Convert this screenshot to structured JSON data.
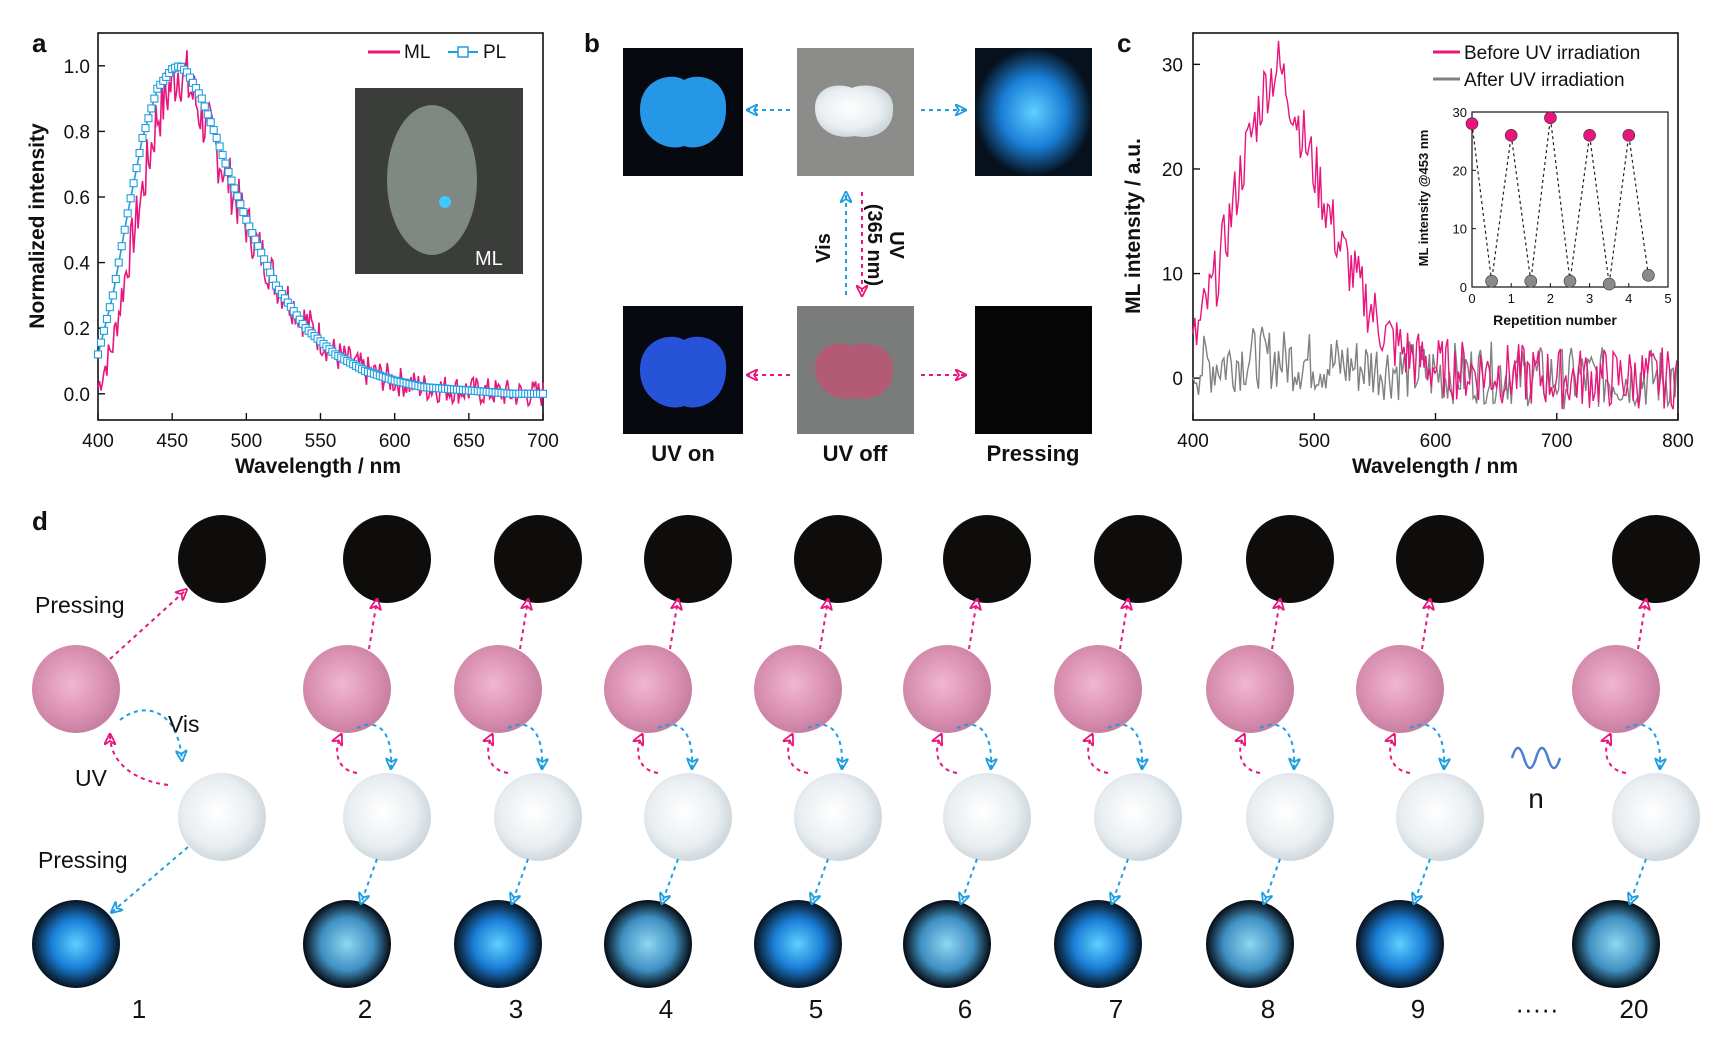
{
  "panel_labels": {
    "a": "a",
    "b": "b",
    "c": "c",
    "d": "d"
  },
  "colors": {
    "ml": "#e8157d",
    "pl": "#1e9ee0",
    "after": "#808080",
    "uv_arrow": "#e8157d",
    "vis_arrow": "#1e9ee0"
  },
  "chart_data": [
    {
      "type": "line",
      "panel": "a",
      "xlabel": "Wavelength / nm",
      "ylabel": "Normalized intensity",
      "xlim": [
        400,
        700
      ],
      "ylim": [
        -0.08,
        1.1
      ],
      "xticks": [
        "400",
        "450",
        "500",
        "550",
        "600",
        "650",
        "700"
      ],
      "yticks": [
        "0.0",
        "0.2",
        "0.4",
        "0.6",
        "0.8",
        "1.0"
      ],
      "legend_position": "top-right",
      "series": [
        {
          "name": "ML",
          "x": [
            400,
            410,
            420,
            430,
            440,
            450,
            455,
            460,
            470,
            480,
            490,
            500,
            520,
            540,
            560,
            580,
            600,
            620,
            650,
            680,
            700
          ],
          "y": [
            0.02,
            0.15,
            0.4,
            0.62,
            0.85,
            0.95,
            1.0,
            0.95,
            0.85,
            0.74,
            0.63,
            0.52,
            0.34,
            0.22,
            0.12,
            0.07,
            0.04,
            0.02,
            0.01,
            0.0,
            0.0
          ]
        },
        {
          "name": "PL",
          "x": [
            400,
            410,
            420,
            430,
            440,
            450,
            455,
            460,
            470,
            480,
            490,
            500,
            520,
            540,
            560,
            580,
            600,
            620,
            650,
            680,
            700
          ],
          "y": [
            0.12,
            0.3,
            0.55,
            0.78,
            0.93,
            0.99,
            1.0,
            0.98,
            0.9,
            0.78,
            0.65,
            0.53,
            0.33,
            0.2,
            0.12,
            0.07,
            0.04,
            0.02,
            0.01,
            0.0,
            0.0
          ]
        }
      ],
      "inset_label": "ML"
    },
    {
      "type": "line",
      "panel": "c",
      "xlabel": "Wavelength / nm",
      "ylabel": "ML intensity / a.u.",
      "xlim": [
        400,
        800
      ],
      "ylim": [
        -4,
        33
      ],
      "xticks": [
        "400",
        "500",
        "600",
        "700",
        "800"
      ],
      "yticks": [
        "0",
        "10",
        "20",
        "30"
      ],
      "legend_position": "top-right",
      "series": [
        {
          "name": "Before UV irradiation",
          "x": [
            400,
            420,
            440,
            460,
            470,
            480,
            500,
            520,
            540,
            560,
            580,
            600,
            650,
            700,
            750,
            800
          ],
          "y": [
            3,
            10,
            20,
            28,
            30,
            27,
            20,
            13,
            8,
            4,
            2,
            1,
            0.5,
            0,
            0,
            0
          ]
        },
        {
          "name": "After UV irradiation",
          "x": [
            400,
            450,
            500,
            550,
            600,
            650,
            700,
            750,
            800
          ],
          "y": [
            1,
            2,
            1.5,
            1,
            0.5,
            0.5,
            0,
            0,
            0
          ]
        }
      ],
      "inset": {
        "type": "scatter",
        "xlabel": "Repetition number",
        "ylabel": "ML intensity @453 nm",
        "xlim": [
          0,
          5
        ],
        "ylim": [
          0,
          30
        ],
        "xticks": [
          "0",
          "1",
          "2",
          "3",
          "4",
          "5"
        ],
        "yticks": [
          "0",
          "10",
          "20",
          "30"
        ],
        "x": [
          0,
          0.5,
          1,
          1.5,
          2,
          2.5,
          3,
          3.5,
          4,
          4.5
        ],
        "y": [
          28,
          1,
          26,
          1,
          29,
          1,
          26,
          0.5,
          26,
          2
        ]
      }
    }
  ],
  "panel_b": {
    "labels_bottom": [
      "UV on",
      "UV off",
      "Pressing"
    ],
    "uv_label": "UV\n(365 nm)",
    "uv_line1": "UV",
    "uv_line2": "(365 nm)",
    "vis_label": "Vis"
  },
  "panel_d": {
    "pressing_top": "Pressing",
    "pressing_bottom": "Pressing",
    "uv": "UV",
    "vis": "Vis",
    "n": "n",
    "ellipsis": "·····",
    "cycle_numbers": [
      "1",
      "2",
      "3",
      "4",
      "5",
      "6",
      "7",
      "8",
      "9",
      "20"
    ]
  }
}
